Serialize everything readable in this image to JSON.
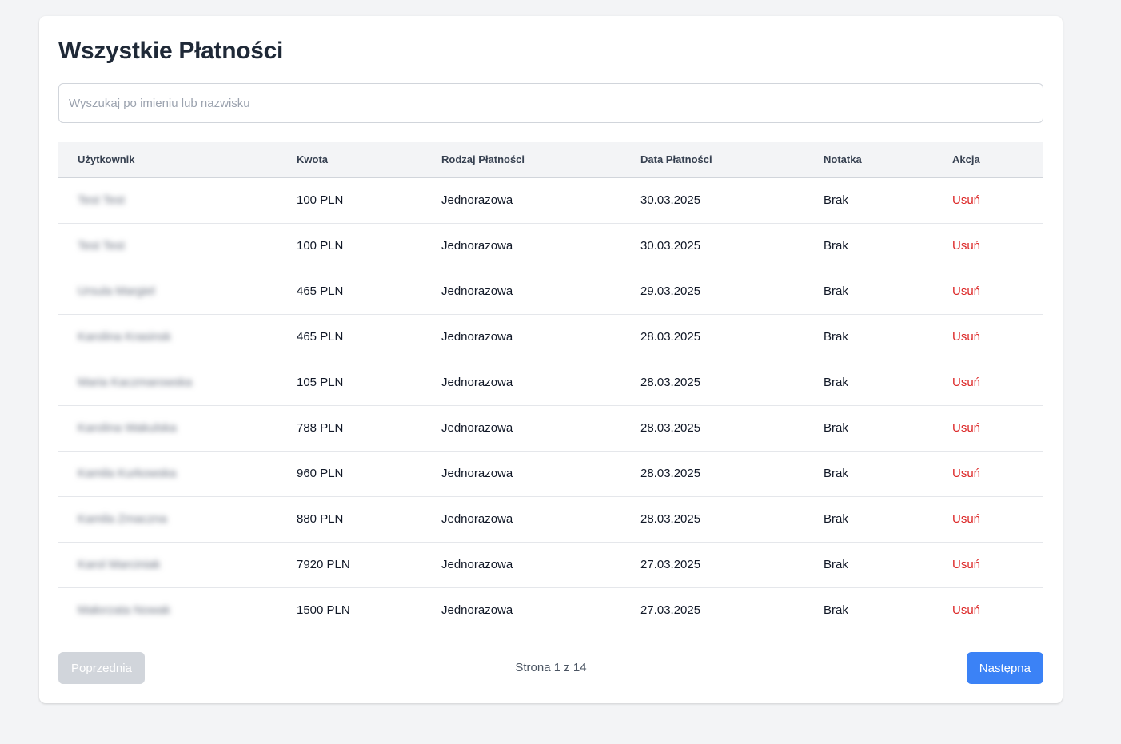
{
  "page": {
    "title": "Wszystkie Płatności"
  },
  "search": {
    "placeholder": "Wyszukaj po imieniu lub nazwisku",
    "value": ""
  },
  "table": {
    "headers": [
      "Użytkownik",
      "Kwota",
      "Rodzaj Płatności",
      "Data Płatności",
      "Notatka",
      "Akcja"
    ],
    "rows": [
      {
        "user": "Test Test",
        "amount": "100 PLN",
        "type": "Jednorazowa",
        "date": "30.03.2025",
        "note": "Brak",
        "action": "Usuń"
      },
      {
        "user": "Test Test",
        "amount": "100 PLN",
        "type": "Jednorazowa",
        "date": "30.03.2025",
        "note": "Brak",
        "action": "Usuń"
      },
      {
        "user": "Ursula Margiel",
        "amount": "465 PLN",
        "type": "Jednorazowa",
        "date": "29.03.2025",
        "note": "Brak",
        "action": "Usuń"
      },
      {
        "user": "Karolina Krasinsk",
        "amount": "465 PLN",
        "type": "Jednorazowa",
        "date": "28.03.2025",
        "note": "Brak",
        "action": "Usuń"
      },
      {
        "user": "Maria Kaczmarowska",
        "amount": "105 PLN",
        "type": "Jednorazowa",
        "date": "28.03.2025",
        "note": "Brak",
        "action": "Usuń"
      },
      {
        "user": "Karolina Wakulska",
        "amount": "788 PLN",
        "type": "Jednorazowa",
        "date": "28.03.2025",
        "note": "Brak",
        "action": "Usuń"
      },
      {
        "user": "Kamila Kurkowska",
        "amount": "960 PLN",
        "type": "Jednorazowa",
        "date": "28.03.2025",
        "note": "Brak",
        "action": "Usuń"
      },
      {
        "user": "Kamila Zmaczna",
        "amount": "880 PLN",
        "type": "Jednorazowa",
        "date": "28.03.2025",
        "note": "Brak",
        "action": "Usuń"
      },
      {
        "user": "Karol Marciniak",
        "amount": "7920 PLN",
        "type": "Jednorazowa",
        "date": "27.03.2025",
        "note": "Brak",
        "action": "Usuń"
      },
      {
        "user": "Małorzata Nowak",
        "amount": "1500 PLN",
        "type": "Jednorazowa",
        "date": "27.03.2025",
        "note": "Brak",
        "action": "Usuń"
      }
    ]
  },
  "pagination": {
    "prev_label": "Poprzednia",
    "next_label": "Następna",
    "info": "Strona 1 z 14",
    "current_page": 1,
    "total_pages": 14
  },
  "colors": {
    "background": "#f3f4f6",
    "card": "#ffffff",
    "delete_action": "#dc2626",
    "next_button": "#3b82f6",
    "prev_button_disabled": "#d1d5db"
  }
}
